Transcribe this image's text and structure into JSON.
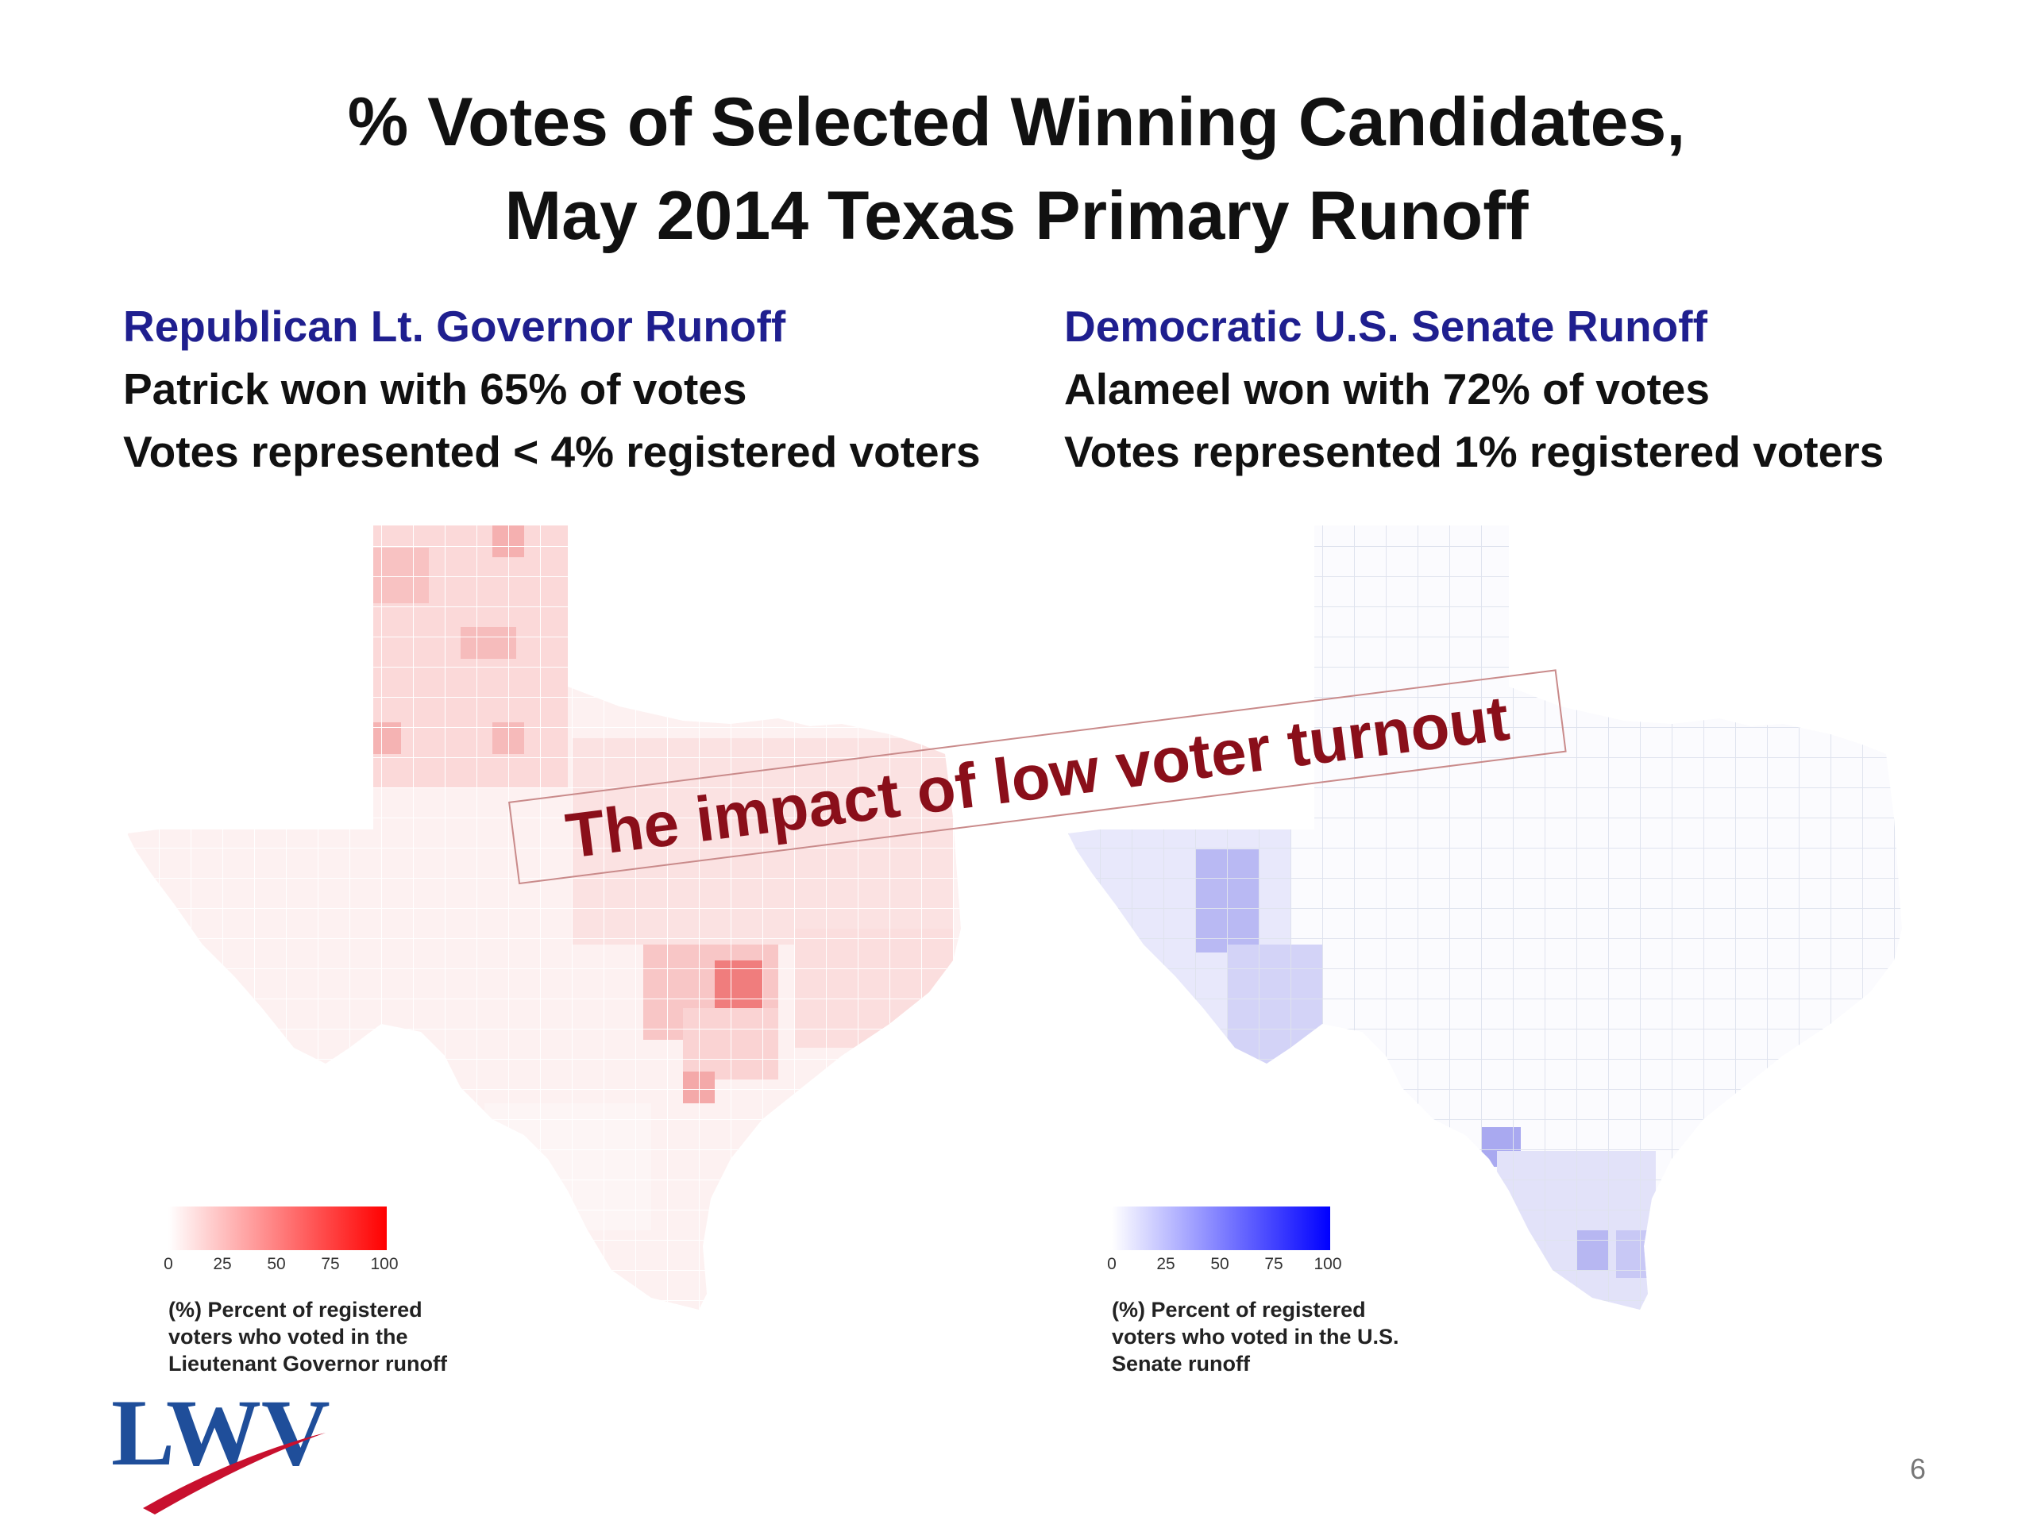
{
  "title": {
    "line1": "% Votes of Selected Winning Candidates,",
    "line2": "May 2014 Texas Primary Runoff"
  },
  "left": {
    "heading": "Republican Lt. Governor Runoff",
    "line1": "Patrick won with 65% of votes",
    "line2": "Votes represented < 4% registered voters",
    "legend": {
      "ticks": [
        "0",
        "25",
        "50",
        "75",
        "100"
      ],
      "caption_lines": [
        "(%) Percent of registered",
        "voters who voted in the",
        "Lieutenant Governor runoff"
      ],
      "color": "#ff0000"
    }
  },
  "right": {
    "heading": "Democratic U.S. Senate Runoff",
    "line1": "Alameel won with 72% of votes",
    "line2": "Votes represented 1% registered voters",
    "legend": {
      "ticks": [
        "0",
        "25",
        "50",
        "75",
        "100"
      ],
      "caption_lines": [
        "(%) Percent of registered",
        "voters who voted in the U.S.",
        "Senate runoff"
      ],
      "color": "#0000ff"
    }
  },
  "banner": {
    "text": "The impact of low voter turnout"
  },
  "logo": {
    "text": "LWV",
    "color": "#1f4e9a",
    "swoosh_color": "#c8102e"
  },
  "page_number": "6"
}
